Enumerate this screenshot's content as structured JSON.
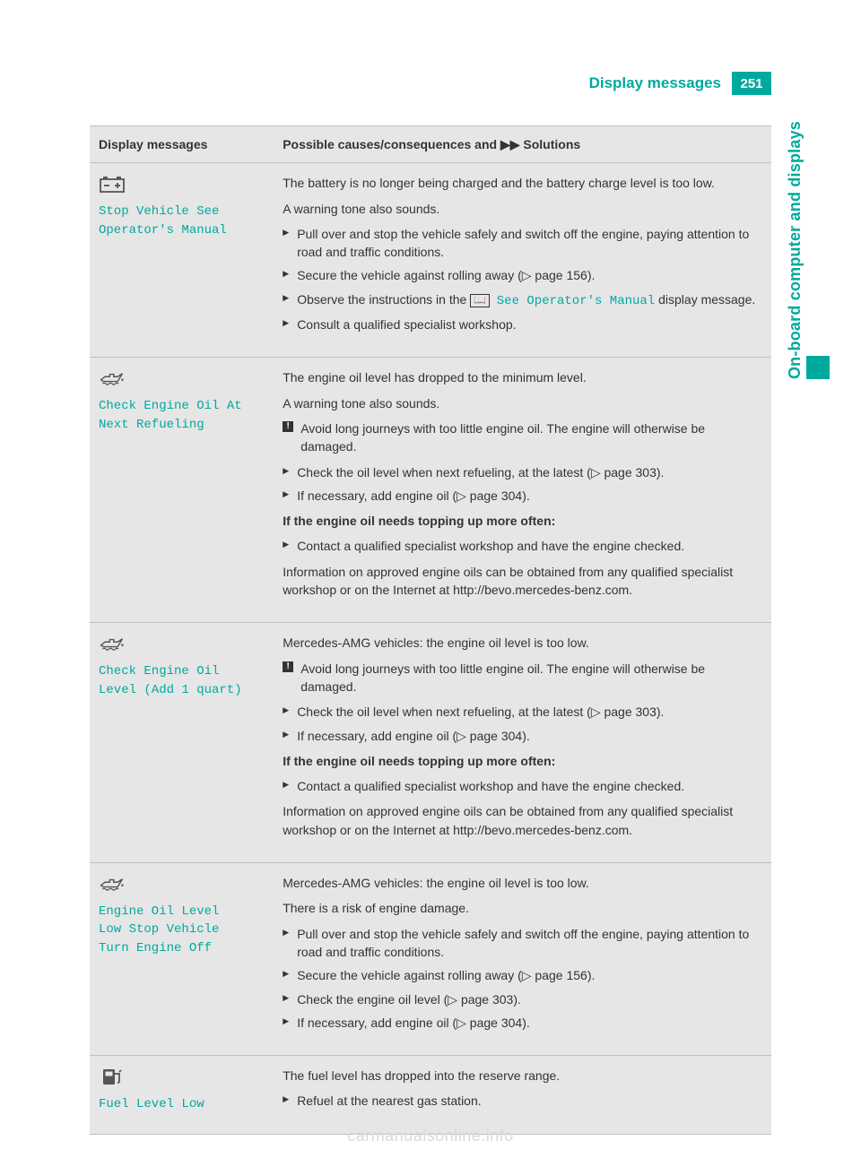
{
  "colors": {
    "teal": "#00a99d",
    "grey_bg": "#e6e6e6",
    "rule": "#bfbfbf",
    "ink": "#333333",
    "footer": "#d9d9d9"
  },
  "header": {
    "title": "Display messages",
    "page_number": "251"
  },
  "side_tab": {
    "label": "On-board computer and displays"
  },
  "table": {
    "head": {
      "left": "Display messages",
      "right_pre": "Possible causes/consequences and ",
      "right_post": " Solutions"
    },
    "rows": [
      {
        "icon": "battery",
        "msg": "Stop Vehicle See\nOperator's Manual",
        "content": [
          {
            "t": "p",
            "v": "The battery is no longer being charged and the battery charge level is too low."
          },
          {
            "t": "p",
            "v": "A warning tone also sounds."
          },
          {
            "t": "li",
            "v": "Pull over and stop the vehicle safely and switch off the engine, paying attention to road and traffic conditions."
          },
          {
            "t": "li",
            "v": "Secure the vehicle against rolling away (▷ page 156)."
          },
          {
            "t": "li_html",
            "pre": "Observe the instructions in the ",
            "box": "📖",
            "teal": "See Operator's Manual",
            "post": " display message."
          },
          {
            "t": "li",
            "v": "Consult a qualified specialist workshop."
          }
        ]
      },
      {
        "icon": "oil",
        "msg": "Check Engine Oil At\nNext Refueling",
        "content": [
          {
            "t": "p",
            "v": "The engine oil level has dropped to the minimum level."
          },
          {
            "t": "p",
            "v": "A warning tone also sounds."
          },
          {
            "t": "warn",
            "v": "Avoid long journeys with too little engine oil. The engine will otherwise be damaged."
          },
          {
            "t": "li",
            "v": "Check the oil level when next refueling, at the latest (▷ page 303)."
          },
          {
            "t": "li",
            "v": "If necessary, add engine oil (▷ page 304)."
          },
          {
            "t": "pb",
            "v": "If the engine oil needs topping up more often:"
          },
          {
            "t": "li",
            "v": "Contact a qualified specialist workshop and have the engine checked."
          },
          {
            "t": "p",
            "v": "Information on approved engine oils can be obtained from any qualified specialist workshop or on the Internet at http://bevo.mercedes-benz.com."
          }
        ]
      },
      {
        "icon": "oil",
        "msg": "Check Engine Oil\nLevel (Add 1 quart)",
        "content": [
          {
            "t": "p",
            "v": "Mercedes-AMG vehicles: the engine oil level is too low."
          },
          {
            "t": "warn",
            "v": "Avoid long journeys with too little engine oil. The engine will otherwise be damaged."
          },
          {
            "t": "li",
            "v": "Check the oil level when next refueling, at the latest (▷ page 303)."
          },
          {
            "t": "li",
            "v": "If necessary, add engine oil (▷ page 304)."
          },
          {
            "t": "pb",
            "v": "If the engine oil needs topping up more often:"
          },
          {
            "t": "li",
            "v": "Contact a qualified specialist workshop and have the engine checked."
          },
          {
            "t": "p",
            "v": "Information on approved engine oils can be obtained from any qualified specialist workshop or on the Internet at http://bevo.mercedes-benz.com."
          }
        ]
      },
      {
        "icon": "oil",
        "msg": "Engine Oil Level\nLow Stop Vehicle\nTurn Engine Off",
        "content": [
          {
            "t": "p",
            "v": "Mercedes-AMG vehicles: the engine oil level is too low."
          },
          {
            "t": "p",
            "v": "There is a risk of engine damage."
          },
          {
            "t": "li",
            "v": "Pull over and stop the vehicle safely and switch off the engine, paying attention to road and traffic conditions."
          },
          {
            "t": "li",
            "v": "Secure the vehicle against rolling away (▷ page 156)."
          },
          {
            "t": "li",
            "v": "Check the engine oil level (▷ page 303)."
          },
          {
            "t": "li",
            "v": "If necessary, add engine oil (▷ page 304)."
          }
        ]
      },
      {
        "icon": "fuel",
        "msg": "Fuel Level Low",
        "content": [
          {
            "t": "p",
            "v": "The fuel level has dropped into the reserve range."
          },
          {
            "t": "li",
            "v": "Refuel at the nearest gas station."
          }
        ]
      }
    ]
  },
  "footer": "carmanualsonline.info"
}
